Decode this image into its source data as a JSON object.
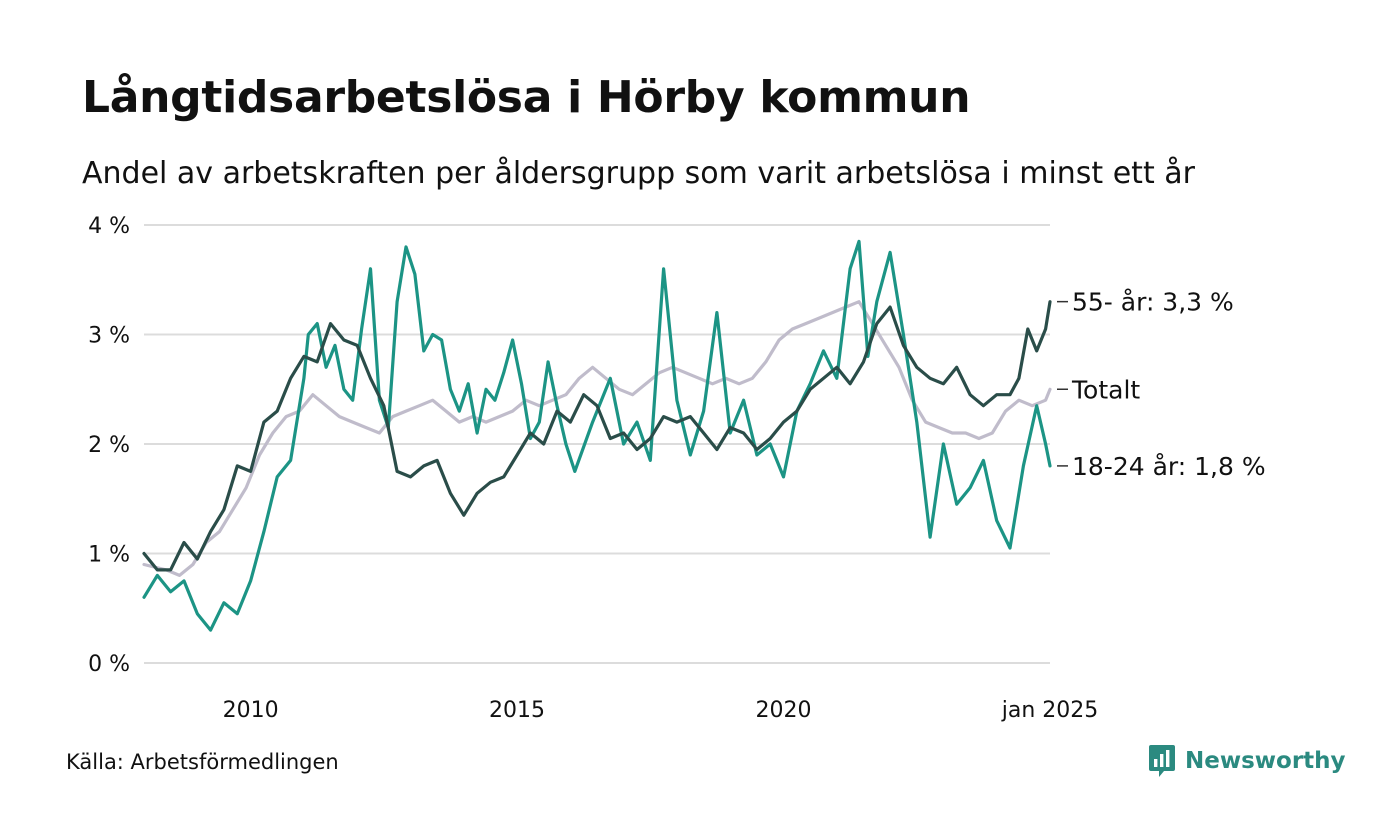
{
  "title": "Långtidsarbetslösa i Hörby kommun",
  "subtitle": "Andel av arbetskraften per åldersgrupp som varit arbetslösa i minst ett år",
  "source": "Källa: Arbetsförmedlingen",
  "brand": {
    "name": "Newsworthy",
    "icon": "newsworthy-logo-icon",
    "color": "#2b8a80"
  },
  "chart_data": {
    "type": "line",
    "y_unit": "%",
    "ylim": [
      0,
      4
    ],
    "y_ticks": [
      {
        "value": 0,
        "label": "0 %"
      },
      {
        "value": 1,
        "label": "1 %"
      },
      {
        "value": 2,
        "label": "2 %"
      },
      {
        "value": 3,
        "label": "3 %"
      },
      {
        "value": 4,
        "label": "4 %"
      }
    ],
    "xlim": [
      "2008-01",
      "2025-01"
    ],
    "x_ticks": [
      {
        "value": "2010-01",
        "label": "2010"
      },
      {
        "value": "2015-01",
        "label": "2015"
      },
      {
        "value": "2020-01",
        "label": "2020"
      },
      {
        "value": "2025-01",
        "label": "jan 2025"
      }
    ],
    "grid": true,
    "legend": "end-labels",
    "series": [
      {
        "label": "Totalt",
        "color": "#c0bccb",
        "points": [
          [
            "2008-01",
            0.9
          ],
          [
            "2008-06",
            0.85
          ],
          [
            "2008-09",
            0.8
          ],
          [
            "2008-12",
            0.9
          ],
          [
            "2009-03",
            1.1
          ],
          [
            "2009-06",
            1.2
          ],
          [
            "2009-09",
            1.4
          ],
          [
            "2009-12",
            1.6
          ],
          [
            "2010-03",
            1.9
          ],
          [
            "2010-06",
            2.1
          ],
          [
            "2010-09",
            2.25
          ],
          [
            "2010-12",
            2.3
          ],
          [
            "2011-03",
            2.45
          ],
          [
            "2011-06",
            2.35
          ],
          [
            "2011-09",
            2.25
          ],
          [
            "2011-12",
            2.2
          ],
          [
            "2012-03",
            2.15
          ],
          [
            "2012-06",
            2.1
          ],
          [
            "2012-09",
            2.25
          ],
          [
            "2012-12",
            2.3
          ],
          [
            "2013-03",
            2.35
          ],
          [
            "2013-06",
            2.4
          ],
          [
            "2013-09",
            2.3
          ],
          [
            "2013-12",
            2.2
          ],
          [
            "2014-03",
            2.25
          ],
          [
            "2014-06",
            2.2
          ],
          [
            "2014-09",
            2.25
          ],
          [
            "2014-12",
            2.3
          ],
          [
            "2015-03",
            2.4
          ],
          [
            "2015-06",
            2.35
          ],
          [
            "2015-09",
            2.4
          ],
          [
            "2015-12",
            2.45
          ],
          [
            "2016-03",
            2.6
          ],
          [
            "2016-06",
            2.7
          ],
          [
            "2016-09",
            2.6
          ],
          [
            "2016-12",
            2.5
          ],
          [
            "2017-03",
            2.45
          ],
          [
            "2017-06",
            2.55
          ],
          [
            "2017-09",
            2.65
          ],
          [
            "2017-12",
            2.7
          ],
          [
            "2018-03",
            2.65
          ],
          [
            "2018-06",
            2.6
          ],
          [
            "2018-09",
            2.55
          ],
          [
            "2018-12",
            2.6
          ],
          [
            "2019-03",
            2.55
          ],
          [
            "2019-06",
            2.6
          ],
          [
            "2019-09",
            2.75
          ],
          [
            "2019-12",
            2.95
          ],
          [
            "2020-03",
            3.05
          ],
          [
            "2020-06",
            3.1
          ],
          [
            "2020-09",
            3.15
          ],
          [
            "2020-12",
            3.2
          ],
          [
            "2021-03",
            3.25
          ],
          [
            "2021-06",
            3.3
          ],
          [
            "2021-09",
            3.1
          ],
          [
            "2021-12",
            2.9
          ],
          [
            "2022-03",
            2.7
          ],
          [
            "2022-06",
            2.4
          ],
          [
            "2022-09",
            2.2
          ],
          [
            "2022-12",
            2.15
          ],
          [
            "2023-03",
            2.1
          ],
          [
            "2023-06",
            2.1
          ],
          [
            "2023-09",
            2.05
          ],
          [
            "2023-12",
            2.1
          ],
          [
            "2024-03",
            2.3
          ],
          [
            "2024-06",
            2.4
          ],
          [
            "2024-09",
            2.35
          ],
          [
            "2024-12",
            2.4
          ],
          [
            "2025-01",
            2.5
          ]
        ]
      },
      {
        "label": "18-24 år: 1,8 %",
        "color": "#1c9485",
        "points": [
          [
            "2008-01",
            0.6
          ],
          [
            "2008-04",
            0.8
          ],
          [
            "2008-07",
            0.65
          ],
          [
            "2008-10",
            0.75
          ],
          [
            "2009-01",
            0.45
          ],
          [
            "2009-04",
            0.3
          ],
          [
            "2009-07",
            0.55
          ],
          [
            "2009-10",
            0.45
          ],
          [
            "2010-01",
            0.75
          ],
          [
            "2010-04",
            1.2
          ],
          [
            "2010-07",
            1.7
          ],
          [
            "2010-10",
            1.85
          ],
          [
            "2011-01",
            2.6
          ],
          [
            "2011-02",
            3.0
          ],
          [
            "2011-04",
            3.1
          ],
          [
            "2011-06",
            2.7
          ],
          [
            "2011-08",
            2.9
          ],
          [
            "2011-10",
            2.5
          ],
          [
            "2011-12",
            2.4
          ],
          [
            "2012-02",
            3.05
          ],
          [
            "2012-04",
            3.6
          ],
          [
            "2012-06",
            2.4
          ],
          [
            "2012-08",
            2.15
          ],
          [
            "2012-10",
            3.3
          ],
          [
            "2012-12",
            3.8
          ],
          [
            "2013-02",
            3.55
          ],
          [
            "2013-04",
            2.85
          ],
          [
            "2013-06",
            3.0
          ],
          [
            "2013-08",
            2.95
          ],
          [
            "2013-10",
            2.5
          ],
          [
            "2013-12",
            2.3
          ],
          [
            "2014-02",
            2.55
          ],
          [
            "2014-04",
            2.1
          ],
          [
            "2014-06",
            2.5
          ],
          [
            "2014-08",
            2.4
          ],
          [
            "2014-10",
            2.65
          ],
          [
            "2014-12",
            2.95
          ],
          [
            "2015-02",
            2.55
          ],
          [
            "2015-04",
            2.05
          ],
          [
            "2015-06",
            2.2
          ],
          [
            "2015-08",
            2.75
          ],
          [
            "2015-10",
            2.35
          ],
          [
            "2015-12",
            2.0
          ],
          [
            "2016-02",
            1.75
          ],
          [
            "2016-06",
            2.2
          ],
          [
            "2016-10",
            2.6
          ],
          [
            "2017-01",
            2.0
          ],
          [
            "2017-04",
            2.2
          ],
          [
            "2017-07",
            1.85
          ],
          [
            "2017-10",
            3.6
          ],
          [
            "2018-01",
            2.4
          ],
          [
            "2018-04",
            1.9
          ],
          [
            "2018-07",
            2.3
          ],
          [
            "2018-10",
            3.2
          ],
          [
            "2019-01",
            2.1
          ],
          [
            "2019-04",
            2.4
          ],
          [
            "2019-07",
            1.9
          ],
          [
            "2019-10",
            2.0
          ],
          [
            "2020-01",
            1.7
          ],
          [
            "2020-04",
            2.3
          ],
          [
            "2020-07",
            2.55
          ],
          [
            "2020-10",
            2.85
          ],
          [
            "2021-01",
            2.6
          ],
          [
            "2021-04",
            3.6
          ],
          [
            "2021-06",
            3.85
          ],
          [
            "2021-08",
            2.8
          ],
          [
            "2021-10",
            3.3
          ],
          [
            "2022-01",
            3.75
          ],
          [
            "2022-04",
            3.0
          ],
          [
            "2022-07",
            2.2
          ],
          [
            "2022-10",
            1.15
          ],
          [
            "2023-01",
            2.0
          ],
          [
            "2023-04",
            1.45
          ],
          [
            "2023-07",
            1.6
          ],
          [
            "2023-10",
            1.85
          ],
          [
            "2024-01",
            1.3
          ],
          [
            "2024-04",
            1.05
          ],
          [
            "2024-07",
            1.8
          ],
          [
            "2024-10",
            2.35
          ],
          [
            "2024-12",
            2.0
          ],
          [
            "2025-01",
            1.8
          ]
        ]
      },
      {
        "label": "55- år: 3,3 %",
        "color": "#2a4d49",
        "points": [
          [
            "2008-01",
            1.0
          ],
          [
            "2008-04",
            0.85
          ],
          [
            "2008-07",
            0.85
          ],
          [
            "2008-10",
            1.1
          ],
          [
            "2009-01",
            0.95
          ],
          [
            "2009-04",
            1.2
          ],
          [
            "2009-07",
            1.4
          ],
          [
            "2009-10",
            1.8
          ],
          [
            "2010-01",
            1.75
          ],
          [
            "2010-04",
            2.2
          ],
          [
            "2010-07",
            2.3
          ],
          [
            "2010-10",
            2.6
          ],
          [
            "2011-01",
            2.8
          ],
          [
            "2011-04",
            2.75
          ],
          [
            "2011-07",
            3.1
          ],
          [
            "2011-10",
            2.95
          ],
          [
            "2012-01",
            2.9
          ],
          [
            "2012-04",
            2.6
          ],
          [
            "2012-07",
            2.35
          ],
          [
            "2012-10",
            1.75
          ],
          [
            "2013-01",
            1.7
          ],
          [
            "2013-04",
            1.8
          ],
          [
            "2013-07",
            1.85
          ],
          [
            "2013-10",
            1.55
          ],
          [
            "2014-01",
            1.35
          ],
          [
            "2014-04",
            1.55
          ],
          [
            "2014-07",
            1.65
          ],
          [
            "2014-10",
            1.7
          ],
          [
            "2015-01",
            1.9
          ],
          [
            "2015-04",
            2.1
          ],
          [
            "2015-07",
            2.0
          ],
          [
            "2015-10",
            2.3
          ],
          [
            "2016-01",
            2.2
          ],
          [
            "2016-04",
            2.45
          ],
          [
            "2016-07",
            2.35
          ],
          [
            "2016-10",
            2.05
          ],
          [
            "2017-01",
            2.1
          ],
          [
            "2017-04",
            1.95
          ],
          [
            "2017-07",
            2.05
          ],
          [
            "2017-10",
            2.25
          ],
          [
            "2018-01",
            2.2
          ],
          [
            "2018-04",
            2.25
          ],
          [
            "2018-07",
            2.1
          ],
          [
            "2018-10",
            1.95
          ],
          [
            "2019-01",
            2.15
          ],
          [
            "2019-04",
            2.1
          ],
          [
            "2019-07",
            1.95
          ],
          [
            "2019-10",
            2.05
          ],
          [
            "2020-01",
            2.2
          ],
          [
            "2020-04",
            2.3
          ],
          [
            "2020-07",
            2.5
          ],
          [
            "2020-10",
            2.6
          ],
          [
            "2021-01",
            2.7
          ],
          [
            "2021-04",
            2.55
          ],
          [
            "2021-07",
            2.75
          ],
          [
            "2021-10",
            3.1
          ],
          [
            "2022-01",
            3.25
          ],
          [
            "2022-04",
            2.9
          ],
          [
            "2022-07",
            2.7
          ],
          [
            "2022-10",
            2.6
          ],
          [
            "2023-01",
            2.55
          ],
          [
            "2023-04",
            2.7
          ],
          [
            "2023-07",
            2.45
          ],
          [
            "2023-10",
            2.35
          ],
          [
            "2024-01",
            2.45
          ],
          [
            "2024-04",
            2.45
          ],
          [
            "2024-06",
            2.6
          ],
          [
            "2024-08",
            3.05
          ],
          [
            "2024-10",
            2.85
          ],
          [
            "2024-12",
            3.05
          ],
          [
            "2025-01",
            3.3
          ]
        ]
      }
    ]
  }
}
